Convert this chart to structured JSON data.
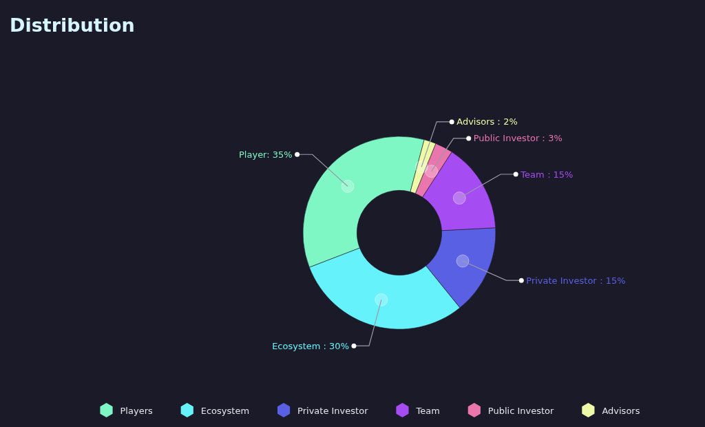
{
  "chart_data": {
    "type": "donut",
    "title": "Distribution",
    "categories": [
      "Players",
      "Ecosystem",
      "Private Investor",
      "Team",
      "Public Investor",
      "Advisors"
    ],
    "values": [
      35,
      30,
      15,
      15,
      3,
      2
    ],
    "colors": [
      "#7ff7c4",
      "#66f2fa",
      "#5a60e3",
      "#a54cf3",
      "#ea76ae",
      "#eefaa8"
    ],
    "value_labels": [
      "Player: 35%",
      "Ecosystem : 30%",
      "Private Investor：15%",
      "Team：15%",
      "Public Investor：3%",
      "Advisors：2%"
    ],
    "legend": "bottom"
  }
}
